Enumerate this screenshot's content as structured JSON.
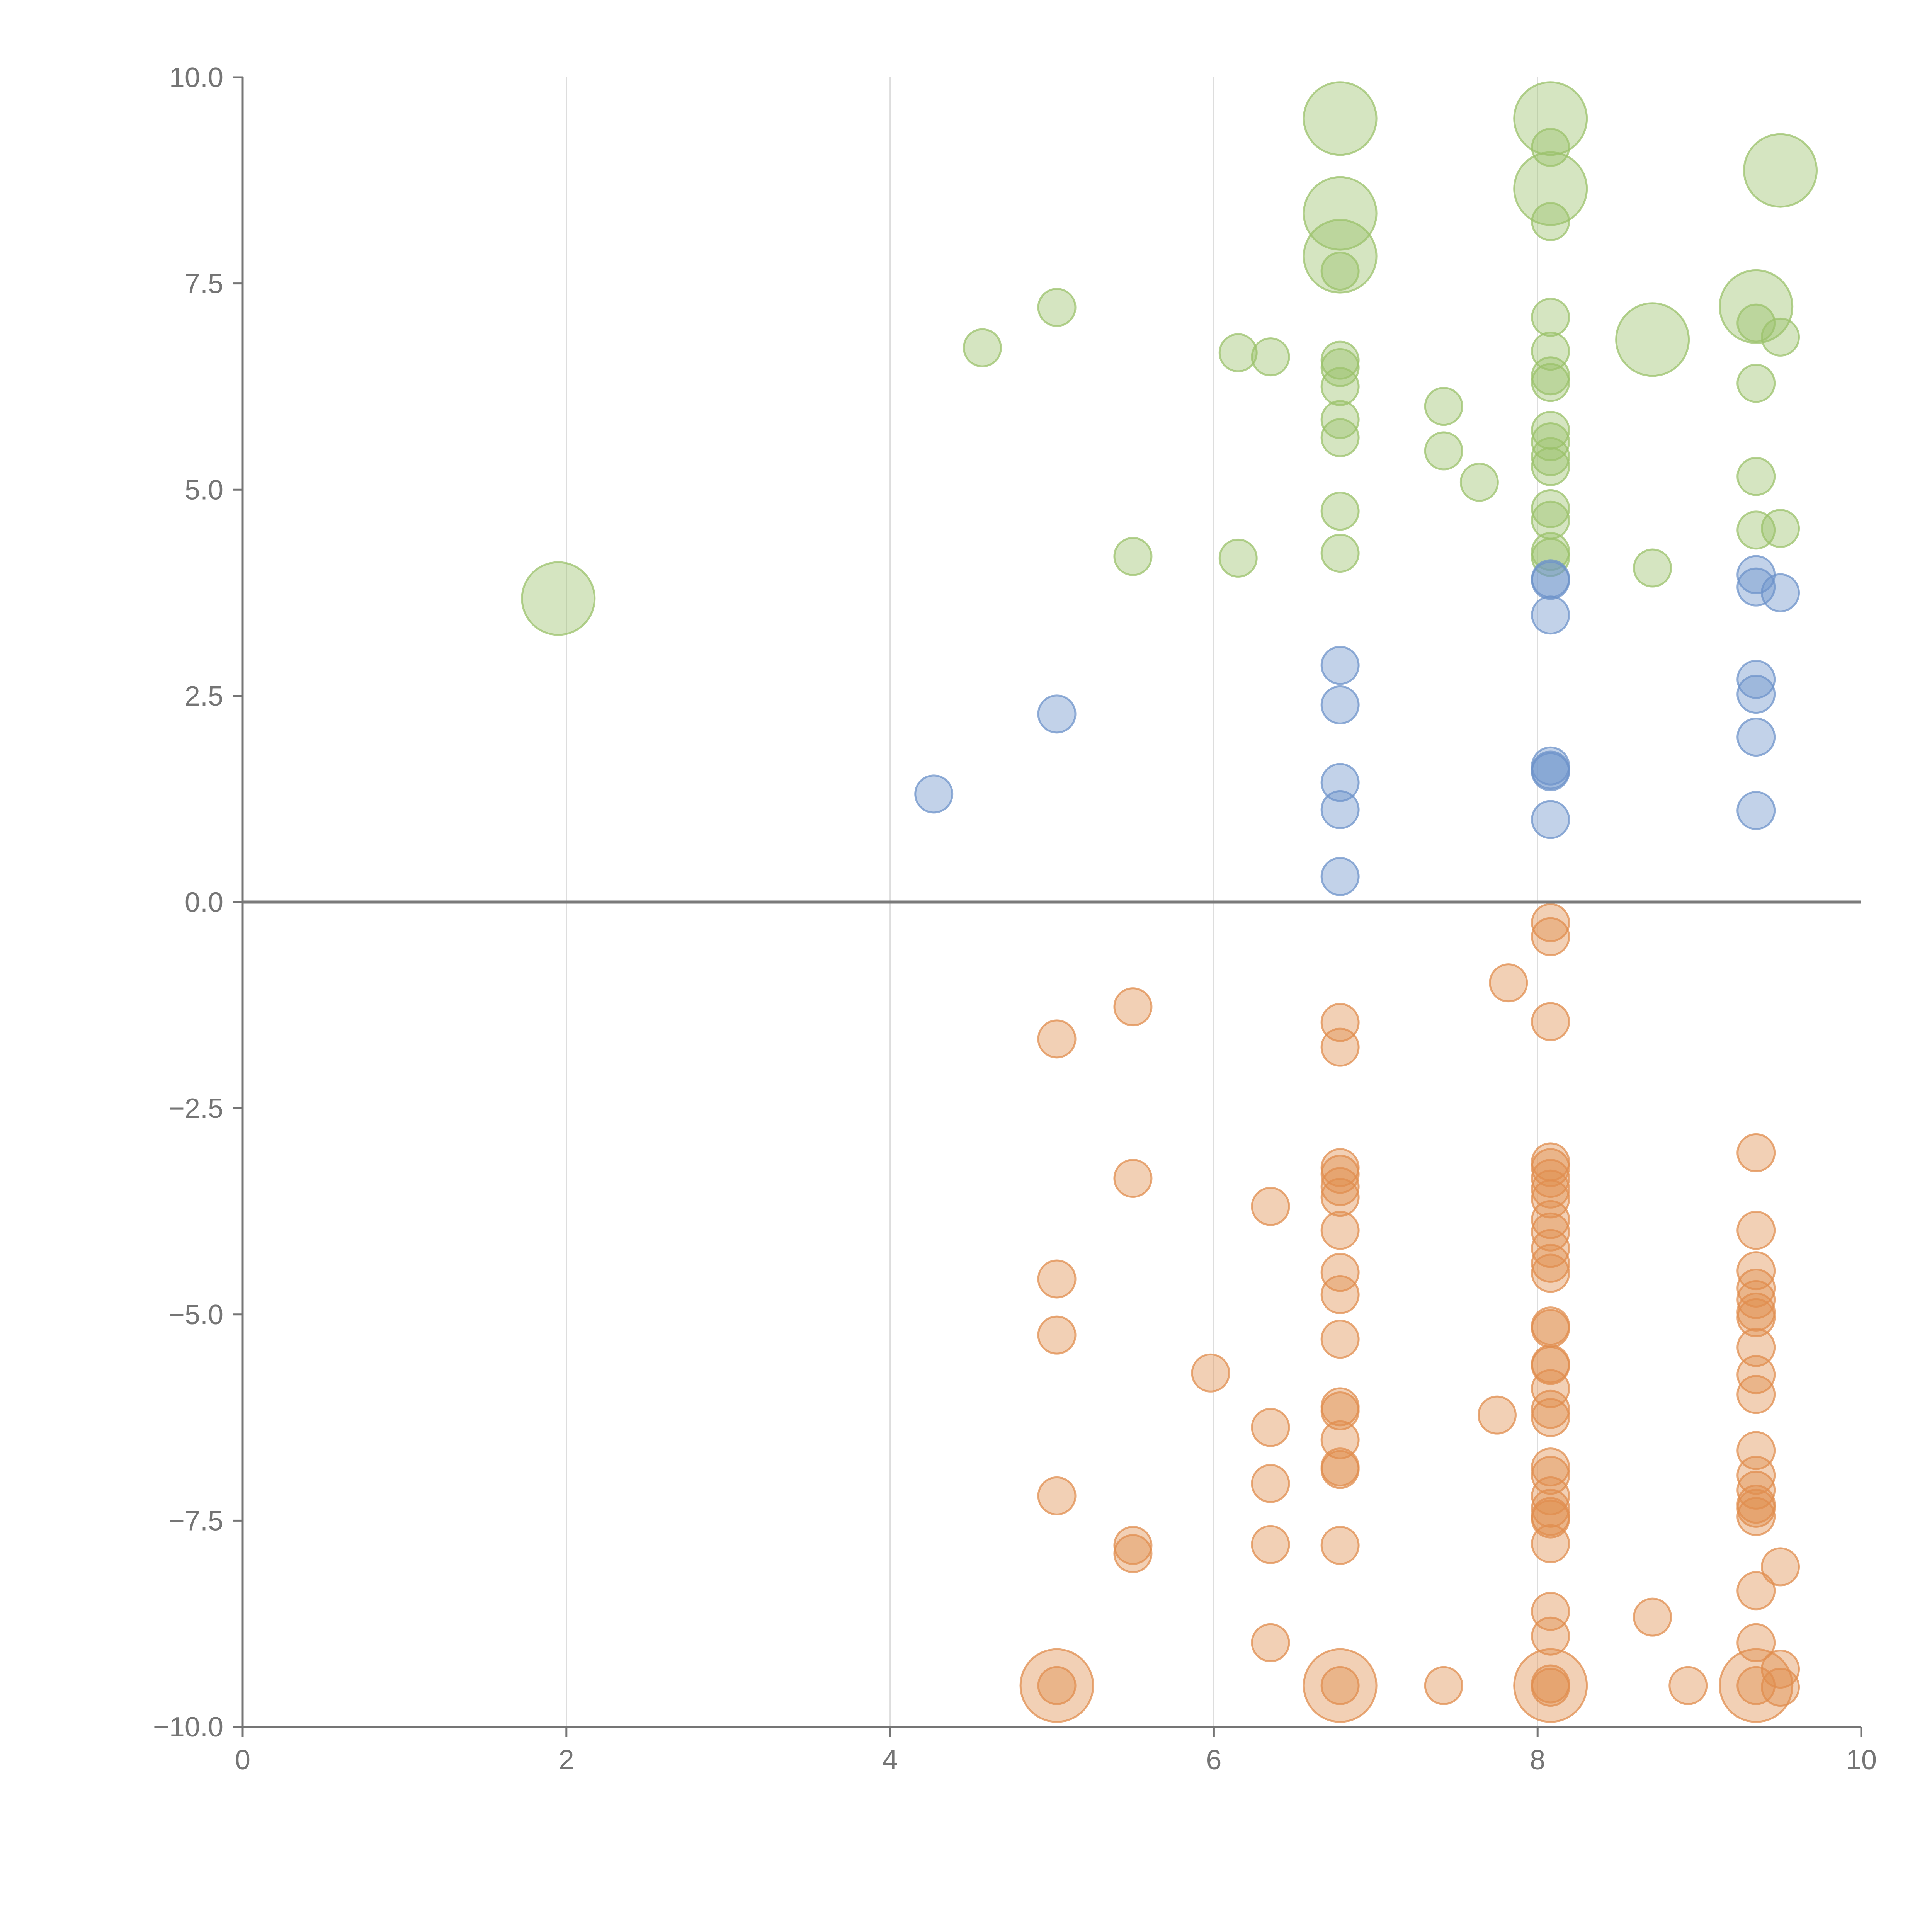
{
  "chart_data": {
    "type": "scatter",
    "title": "",
    "xlabel": "",
    "ylabel": "",
    "xlim": [
      0,
      10
    ],
    "ylim": [
      -10,
      10
    ],
    "x_ticks": [
      "0",
      "2",
      "4",
      "6",
      "8",
      "10"
    ],
    "y_ticks": [
      "10.0",
      "7.5",
      "5.0",
      "2.5",
      "0.0",
      "−2.5",
      "−5.0",
      "−7.5",
      "−10.0"
    ],
    "grid": "vertical",
    "zero_line": true,
    "colors": {
      "green": "#9bc26b",
      "blue": "#6d93ca",
      "orange": "#e08e4f"
    },
    "series": [
      {
        "color": "green",
        "points": [
          [
            6.78,
            9.5,
            2
          ],
          [
            8.08,
            9.5,
            2
          ],
          [
            9.5,
            8.87,
            2
          ],
          [
            8.08,
            8.65,
            2
          ],
          [
            6.78,
            8.35,
            2
          ],
          [
            6.78,
            7.83,
            2
          ],
          [
            9.35,
            7.22,
            2
          ],
          [
            8.71,
            6.82,
            2
          ],
          [
            1.95,
            3.68,
            2
          ],
          [
            8.08,
            9.15,
            1
          ],
          [
            8.08,
            8.25,
            1
          ],
          [
            6.78,
            7.65,
            1
          ],
          [
            5.03,
            7.21,
            1
          ],
          [
            4.57,
            6.72,
            1
          ],
          [
            6.15,
            6.66,
            1
          ],
          [
            6.35,
            6.61,
            1
          ],
          [
            8.08,
            7.09,
            1
          ],
          [
            8.08,
            6.68,
            1
          ],
          [
            8.08,
            6.38,
            1
          ],
          [
            8.08,
            6.3,
            1
          ],
          [
            6.78,
            6.57,
            1
          ],
          [
            6.78,
            6.48,
            1
          ],
          [
            6.78,
            6.25,
            1
          ],
          [
            7.42,
            6.01,
            1
          ],
          [
            6.78,
            5.85,
            1
          ],
          [
            6.78,
            5.63,
            1
          ],
          [
            7.42,
            5.47,
            1
          ],
          [
            7.64,
            5.09,
            1
          ],
          [
            8.08,
            5.72,
            1
          ],
          [
            8.08,
            5.58,
            1
          ],
          [
            8.08,
            5.4,
            1
          ],
          [
            8.08,
            5.28,
            1
          ],
          [
            8.08,
            4.77,
            1
          ],
          [
            8.08,
            4.63,
            1
          ],
          [
            8.08,
            4.25,
            1
          ],
          [
            8.08,
            4.18,
            1
          ],
          [
            6.78,
            4.74,
            1
          ],
          [
            6.78,
            4.23,
            1
          ],
          [
            5.5,
            4.19,
            1
          ],
          [
            6.15,
            4.17,
            1
          ],
          [
            8.71,
            4.05,
            1
          ],
          [
            9.35,
            7.02,
            1
          ],
          [
            9.5,
            6.85,
            1
          ],
          [
            9.35,
            6.29,
            1
          ],
          [
            9.35,
            5.16,
            1
          ],
          [
            9.35,
            4.51,
            1
          ],
          [
            9.5,
            4.53,
            1
          ]
        ]
      },
      {
        "color": "blue",
        "points": [
          [
            8.08,
            3.92,
            1
          ],
          [
            8.08,
            3.9,
            1
          ],
          [
            8.08,
            3.48,
            1
          ],
          [
            6.78,
            2.87,
            1
          ],
          [
            6.78,
            2.39,
            1
          ],
          [
            5.03,
            2.28,
            1
          ],
          [
            4.27,
            1.31,
            1
          ],
          [
            8.08,
            1.65,
            1
          ],
          [
            8.08,
            1.6,
            1
          ],
          [
            8.08,
            1.58,
            1
          ],
          [
            6.78,
            1.45,
            1
          ],
          [
            6.78,
            1.12,
            1
          ],
          [
            8.08,
            1.0,
            1
          ],
          [
            6.78,
            0.31,
            1
          ],
          [
            9.35,
            3.97,
            1
          ],
          [
            9.35,
            3.82,
            1
          ],
          [
            9.5,
            3.75,
            1
          ],
          [
            9.35,
            2.7,
            1
          ],
          [
            9.35,
            2.52,
            1
          ],
          [
            9.35,
            2.0,
            1
          ],
          [
            9.35,
            1.11,
            1
          ]
        ]
      },
      {
        "color": "orange",
        "points": [
          [
            5.03,
            -9.5,
            2
          ],
          [
            6.78,
            -9.5,
            2
          ],
          [
            8.08,
            -9.5,
            2
          ],
          [
            9.35,
            -9.5,
            2
          ],
          [
            8.08,
            -0.25,
            1
          ],
          [
            8.08,
            -0.42,
            1
          ],
          [
            7.82,
            -0.98,
            1
          ],
          [
            8.08,
            -1.45,
            1
          ],
          [
            5.5,
            -1.27,
            1
          ],
          [
            5.03,
            -1.66,
            1
          ],
          [
            6.78,
            -1.46,
            1
          ],
          [
            6.78,
            -1.76,
            1
          ],
          [
            5.5,
            -3.35,
            1
          ],
          [
            6.35,
            -3.69,
            1
          ],
          [
            6.78,
            -3.22,
            1
          ],
          [
            6.78,
            -3.3,
            1
          ],
          [
            6.78,
            -3.45,
            1
          ],
          [
            6.78,
            -3.58,
            1
          ],
          [
            6.78,
            -3.98,
            1
          ],
          [
            8.08,
            -3.15,
            1
          ],
          [
            8.08,
            -3.22,
            1
          ],
          [
            8.08,
            -3.35,
            1
          ],
          [
            8.08,
            -3.48,
            1
          ],
          [
            8.08,
            -3.6,
            1
          ],
          [
            8.08,
            -3.85,
            1
          ],
          [
            8.08,
            -4.0,
            1
          ],
          [
            8.08,
            -4.2,
            1
          ],
          [
            8.08,
            -4.38,
            1
          ],
          [
            8.08,
            -4.5,
            1
          ],
          [
            9.35,
            -3.04,
            1
          ],
          [
            9.35,
            -3.98,
            1
          ],
          [
            9.35,
            -4.47,
            1
          ],
          [
            9.35,
            -4.68,
            1
          ],
          [
            9.35,
            -4.82,
            1
          ],
          [
            9.35,
            -4.97,
            1
          ],
          [
            9.35,
            -5.04,
            1
          ],
          [
            9.35,
            -5.4,
            1
          ],
          [
            9.35,
            -5.73,
            1
          ],
          [
            9.35,
            -5.97,
            1
          ],
          [
            5.03,
            -4.57,
            1
          ],
          [
            5.03,
            -5.25,
            1
          ],
          [
            6.78,
            -4.49,
            1
          ],
          [
            6.78,
            -4.76,
            1
          ],
          [
            6.78,
            -5.3,
            1
          ],
          [
            5.98,
            -5.71,
            1
          ],
          [
            8.08,
            -5.14,
            1
          ],
          [
            8.08,
            -5.17,
            1
          ],
          [
            8.08,
            -5.6,
            1
          ],
          [
            8.08,
            -5.62,
            1
          ],
          [
            8.08,
            -5.9,
            1
          ],
          [
            8.08,
            -6.15,
            1
          ],
          [
            8.08,
            -6.25,
            1
          ],
          [
            7.75,
            -6.22,
            1
          ],
          [
            6.78,
            -6.12,
            1
          ],
          [
            6.78,
            -6.17,
            1
          ],
          [
            6.78,
            -6.52,
            1
          ],
          [
            6.78,
            -6.85,
            1
          ],
          [
            6.78,
            -6.88,
            1
          ],
          [
            6.35,
            -6.37,
            1
          ],
          [
            6.35,
            -7.05,
            1
          ],
          [
            9.35,
            -6.65,
            1
          ],
          [
            9.35,
            -6.95,
            1
          ],
          [
            9.35,
            -7.13,
            1
          ],
          [
            9.35,
            -7.3,
            1
          ],
          [
            9.35,
            -7.35,
            1
          ],
          [
            9.35,
            -7.45,
            1
          ],
          [
            8.08,
            -6.85,
            1
          ],
          [
            8.08,
            -6.95,
            1
          ],
          [
            8.08,
            -7.2,
            1
          ],
          [
            8.08,
            -7.35,
            1
          ],
          [
            8.08,
            -7.45,
            1
          ],
          [
            8.08,
            -7.48,
            1
          ],
          [
            8.08,
            -7.78,
            1
          ],
          [
            5.03,
            -7.2,
            1
          ],
          [
            5.5,
            -7.8,
            1
          ],
          [
            5.5,
            -7.9,
            1
          ],
          [
            6.35,
            -7.79,
            1
          ],
          [
            6.78,
            -7.8,
            1
          ],
          [
            9.5,
            -8.06,
            1
          ],
          [
            9.35,
            -8.35,
            1
          ],
          [
            8.08,
            -8.6,
            1
          ],
          [
            8.08,
            -8.9,
            1
          ],
          [
            8.71,
            -8.67,
            1
          ],
          [
            6.35,
            -8.98,
            1
          ],
          [
            9.35,
            -8.98,
            1
          ],
          [
            9.5,
            -9.3,
            1
          ],
          [
            9.5,
            -9.52,
            1
          ],
          [
            7.42,
            -9.5,
            1
          ],
          [
            8.93,
            -9.5,
            1
          ],
          [
            5.03,
            -9.5,
            1
          ],
          [
            6.78,
            -9.5,
            1
          ],
          [
            8.08,
            -9.48,
            1
          ],
          [
            8.08,
            -9.52,
            1
          ],
          [
            9.35,
            -9.5,
            1
          ]
        ]
      }
    ]
  }
}
